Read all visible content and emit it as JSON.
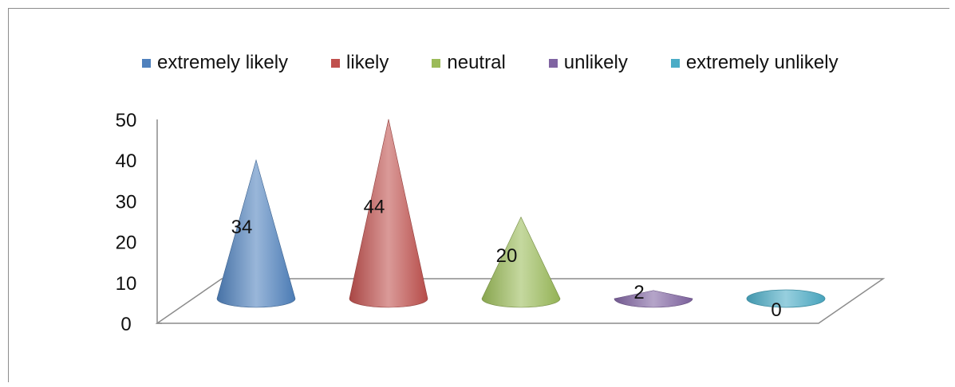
{
  "chart_data": {
    "type": "bar",
    "shape": "cone",
    "categories": [
      "extremely likely",
      "likely",
      "neutral",
      "unlikely",
      "extremely unlikely"
    ],
    "values": [
      34,
      44,
      20,
      2,
      0
    ],
    "data_labels": [
      "34",
      "44",
      "20",
      "2",
      "0"
    ],
    "colors": [
      "#4f81bd",
      "#c0504d",
      "#9bbb59",
      "#8064a2",
      "#4bacc6"
    ],
    "ylim": [
      0,
      50
    ],
    "yticks": [
      "0",
      "10",
      "20",
      "30",
      "40",
      "50"
    ],
    "legend_placement": "top",
    "grid": false
  }
}
